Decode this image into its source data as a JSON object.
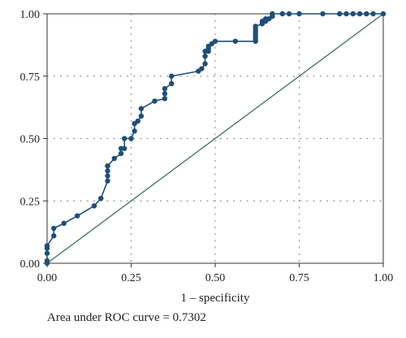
{
  "chart_data": {
    "type": "line",
    "title": "",
    "xlabel": "1 – specificity",
    "ylabel": "",
    "xlim": [
      0,
      1
    ],
    "ylim": [
      0,
      1
    ],
    "x_ticks": [
      "0.00",
      "0.25",
      "0.50",
      "0.75",
      "1.00"
    ],
    "y_ticks": [
      "0.00",
      "0.25",
      "0.50",
      "0.75",
      "1.00"
    ],
    "grid": true,
    "annotation": "Area under ROC curve = 0.7302",
    "colors": {
      "roc": "#1f4e79",
      "reference": "#2e6b4f",
      "grid": "#999999",
      "axis": "#333333"
    },
    "series": [
      {
        "style": "line-with-markers",
        "x": [
          0.0,
          0.0,
          0.0,
          0.0,
          0.0,
          0.02,
          0.02,
          0.05,
          0.09,
          0.14,
          0.16,
          0.18,
          0.18,
          0.18,
          0.18,
          0.18,
          0.2,
          0.22,
          0.22,
          0.23,
          0.23,
          0.25,
          0.26,
          0.26,
          0.27,
          0.28,
          0.28,
          0.32,
          0.35,
          0.35,
          0.35,
          0.37,
          0.37,
          0.45,
          0.46,
          0.47,
          0.47,
          0.47,
          0.48,
          0.48,
          0.48,
          0.49,
          0.5,
          0.56,
          0.62,
          0.62,
          0.62,
          0.62,
          0.62,
          0.62,
          0.62,
          0.64,
          0.64,
          0.65,
          0.65,
          0.66,
          0.67,
          0.67,
          0.7,
          0.72,
          0.75,
          0.82,
          0.87,
          0.89,
          0.91,
          0.93,
          0.95,
          0.97,
          1.0
        ],
        "y": [
          0.0,
          0.01,
          0.04,
          0.06,
          0.07,
          0.11,
          0.14,
          0.16,
          0.19,
          0.23,
          0.26,
          0.33,
          0.35,
          0.37,
          0.39,
          0.39,
          0.42,
          0.44,
          0.46,
          0.46,
          0.5,
          0.5,
          0.53,
          0.56,
          0.57,
          0.59,
          0.62,
          0.65,
          0.66,
          0.68,
          0.7,
          0.72,
          0.75,
          0.77,
          0.78,
          0.8,
          0.83,
          0.85,
          0.85,
          0.86,
          0.87,
          0.88,
          0.89,
          0.89,
          0.89,
          0.9,
          0.91,
          0.92,
          0.93,
          0.94,
          0.95,
          0.96,
          0.97,
          0.97,
          0.98,
          0.98,
          0.99,
          1.0,
          1.0,
          1.0,
          1.0,
          1.0,
          1.0,
          1.0,
          1.0,
          1.0,
          1.0,
          1.0,
          1.0
        ]
      },
      {
        "style": "reference-line",
        "x": [
          0,
          1
        ],
        "y": [
          0,
          1
        ]
      }
    ]
  }
}
